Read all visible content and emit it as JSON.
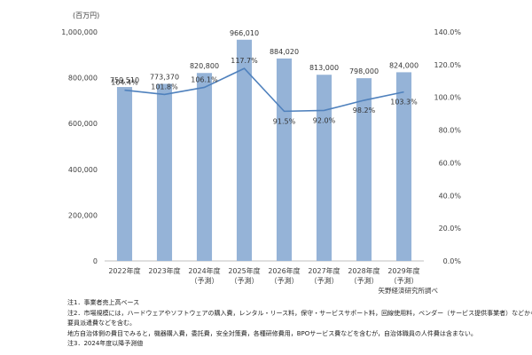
{
  "chart_data": {
    "type": "bar",
    "unit_label": "(百万円)",
    "categories": [
      [
        "2022年度"
      ],
      [
        "2023年度"
      ],
      [
        "2024年度",
        "（予測）"
      ],
      [
        "2025年度",
        "（予測）"
      ],
      [
        "2026年度",
        "（予測）"
      ],
      [
        "2027年度",
        "（予測）"
      ],
      [
        "2028年度",
        "（予測）"
      ],
      [
        "2029年度",
        "（予測）"
      ]
    ],
    "bar_series": {
      "values": [
        759510,
        773370,
        820800,
        966010,
        884020,
        813000,
        798000,
        824000
      ],
      "value_labels": [
        "759,510",
        "773,370",
        "820,800",
        "966,010",
        "884,020",
        "813,000",
        "798,000",
        "824,000"
      ],
      "color": "#95b3d7"
    },
    "line_series": {
      "values": [
        104.4,
        101.8,
        106.1,
        117.7,
        91.5,
        92.0,
        98.2,
        103.3
      ],
      "value_labels": [
        "104.4%",
        "101.8%",
        "106.1%",
        "117.7%",
        "91.5%",
        "92.0%",
        "98.2%",
        "103.3%"
      ],
      "color": "#4f81bd"
    },
    "y_left": {
      "min": 0,
      "max": 1000000,
      "ticks": [
        0,
        200000,
        400000,
        600000,
        800000,
        1000000
      ],
      "tick_labels": [
        "0",
        "200,000",
        "400,000",
        "600,000",
        "800,000",
        "1,000,000"
      ]
    },
    "y_right": {
      "min": 0,
      "max": 140,
      "ticks": [
        0,
        20,
        40,
        60,
        80,
        100,
        120,
        140
      ],
      "tick_labels": [
        "0.0%",
        "20.0%",
        "40.0%",
        "60.0%",
        "80.0%",
        "100.0%",
        "120.0%",
        "140.0%"
      ]
    },
    "grid": false
  },
  "source": "矢野経済研究所調べ",
  "notes": [
    "注1．事業者売上高ベース",
    "注2．市場規模には，ハードウェアやソフトウェアの購入費，レンタル・リース料，保守・サービスサポート料，回線使用料，ベンダー（サービス提供事業者）などからの",
    "要員派遣費などを含む。",
    "地方自治体側の費目でみると，機器購入費，委託費，安全対策費，各種研修費用，BPOサービス費などを含むが，自治体職員の人件費は含まない。",
    "注3．2024年度以降予測値"
  ]
}
